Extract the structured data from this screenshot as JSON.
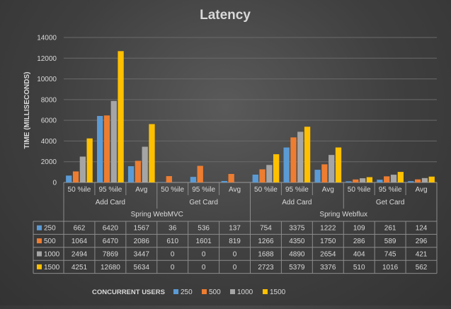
{
  "chart_data": {
    "type": "bar",
    "title": "Latency",
    "ylabel": "TIME (MILLISECONDS)",
    "ylim": [
      0,
      14000
    ],
    "yticks": [
      0,
      2000,
      4000,
      6000,
      8000,
      10000,
      12000,
      14000
    ],
    "grid": true,
    "legend_title": "CONCURRENT USERS",
    "legend_position": "bottom",
    "framework_groups": [
      {
        "name": "Spring WebMVC",
        "subgroups": [
          {
            "name": "Add Card",
            "categories": [
              "50 %ile",
              "95 %ile",
              "Avg"
            ]
          },
          {
            "name": "Get Card",
            "categories": [
              "50 %ile",
              "95 %ile",
              "Avg"
            ]
          }
        ]
      },
      {
        "name": "Spring Webflux",
        "subgroups": [
          {
            "name": "Add Card",
            "categories": [
              "50 %ile",
              "95 %ile",
              "Avg"
            ]
          },
          {
            "name": "Get Card",
            "categories": [
              "50 %ile",
              "95 %ile",
              "Avg"
            ]
          }
        ]
      }
    ],
    "series": [
      {
        "name": "250",
        "color": "#5b9bd5",
        "values": [
          662,
          6420,
          1567,
          36,
          536,
          137,
          754,
          3375,
          1222,
          109,
          261,
          124
        ]
      },
      {
        "name": "500",
        "color": "#ed7d31",
        "values": [
          1064,
          6470,
          2086,
          610,
          1601,
          819,
          1266,
          4350,
          1750,
          286,
          589,
          296
        ]
      },
      {
        "name": "1000",
        "color": "#a5a5a5",
        "values": [
          2494,
          7869,
          3447,
          0,
          0,
          0,
          1688,
          4890,
          2654,
          404,
          745,
          421
        ]
      },
      {
        "name": "1500",
        "color": "#ffc000",
        "values": [
          4251,
          12680,
          5634,
          0,
          0,
          0,
          2723,
          5379,
          3376,
          510,
          1016,
          562
        ]
      }
    ]
  }
}
